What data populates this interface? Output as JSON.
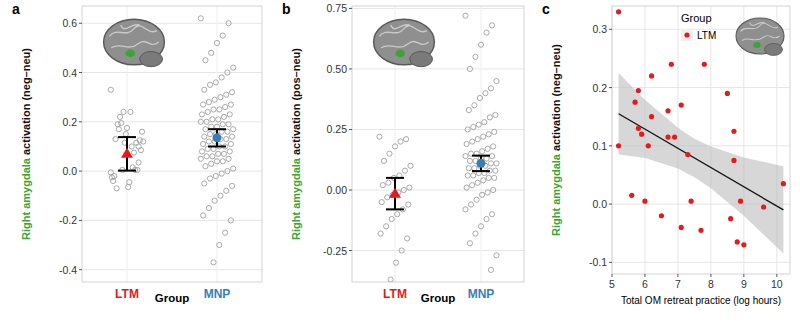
{
  "chart_data": [
    {
      "type": "strip",
      "title": "a",
      "xlabel": "Group",
      "ylabel": "Right amygdala activation (neg–neu)",
      "categories": [
        "LTM",
        "MNP"
      ],
      "colors": [
        "#e41a1c",
        "#377eb8"
      ],
      "values": [
        [
          0.33,
          0.1,
          0.015,
          0.175,
          0.195,
          0.13,
          0.12,
          0.005,
          0.1,
          0.15,
          0.22,
          -0.02,
          0.16,
          0.115,
          0.24,
          0.115,
          0.17,
          -0.04,
          0.085,
          0.005,
          -0.045,
          0.24,
          0.19,
          -0.025,
          0.125,
          0.075,
          -0.065,
          0.005,
          -0.07,
          -0.005,
          0.035
        ],
        [
          0.62,
          0.6,
          0.55,
          0.52,
          0.48,
          0.45,
          0.42,
          0.4,
          0.38,
          0.36,
          0.35,
          0.33,
          0.32,
          0.31,
          0.3,
          0.29,
          0.28,
          0.27,
          0.27,
          0.26,
          0.25,
          0.25,
          0.24,
          0.23,
          0.23,
          0.22,
          0.21,
          0.21,
          0.2,
          0.2,
          0.19,
          0.19,
          0.18,
          0.18,
          0.17,
          0.17,
          0.16,
          0.16,
          0.15,
          0.15,
          0.14,
          0.14,
          0.13,
          0.13,
          0.12,
          0.12,
          0.11,
          0.11,
          0.1,
          0.1,
          0.09,
          0.09,
          0.08,
          0.08,
          0.07,
          0.07,
          0.06,
          0.06,
          0.05,
          0.05,
          0.04,
          0.04,
          0.03,
          0.02,
          0.01,
          0.0,
          -0.01,
          -0.02,
          -0.03,
          -0.05,
          -0.06,
          -0.08,
          -0.1,
          -0.12,
          -0.15,
          -0.18,
          -0.2,
          -0.25,
          -0.3,
          -0.37
        ]
      ],
      "mean": [
        0.07,
        0.135
      ],
      "error": [
        0.068,
        0.035
      ],
      "ylim": [
        -0.45,
        0.67
      ],
      "yticks": [
        -0.4,
        -0.2,
        {
          "value": 0,
          "label": "0.0"
        },
        0.2,
        0.4,
        0.6
      ],
      "grid": true
    },
    {
      "type": "strip",
      "title": "b",
      "xlabel": "Group",
      "ylabel": "Right amygdala activation (pos–neu)",
      "categories": [
        "LTM",
        "MNP"
      ],
      "colors": [
        "#e41a1c",
        "#377eb8"
      ],
      "values": [
        [
          0.22,
          0.21,
          0.2,
          0.18,
          0.15,
          0.12,
          0.1,
          0.08,
          0.06,
          0.05,
          0.03,
          0.02,
          0.01,
          0.0,
          -0.01,
          -0.02,
          -0.03,
          -0.05,
          -0.06,
          -0.08,
          -0.1,
          -0.12,
          -0.15,
          -0.18,
          -0.2,
          -0.25,
          -0.3,
          -0.37
        ],
        [
          0.72,
          0.68,
          0.65,
          0.6,
          0.55,
          0.5,
          0.45,
          0.42,
          0.4,
          0.38,
          0.35,
          0.33,
          0.31,
          0.3,
          0.28,
          0.27,
          0.26,
          0.25,
          0.24,
          0.23,
          0.22,
          0.21,
          0.2,
          0.19,
          0.18,
          0.17,
          0.16,
          0.15,
          0.15,
          0.14,
          0.14,
          0.13,
          0.13,
          0.12,
          0.12,
          0.11,
          0.11,
          0.1,
          0.1,
          0.09,
          0.09,
          0.08,
          0.08,
          0.07,
          0.07,
          0.06,
          0.06,
          0.05,
          0.05,
          0.04,
          0.03,
          0.02,
          0.01,
          0.0,
          -0.01,
          -0.02,
          -0.04,
          -0.06,
          -0.08,
          -0.1,
          -0.12,
          -0.15,
          -0.18,
          -0.22,
          -0.27,
          -0.33
        ]
      ],
      "mean": [
        -0.015,
        0.11
      ],
      "error": [
        0.065,
        0.032
      ],
      "ylim": [
        -0.38,
        0.76
      ],
      "yticks": [
        -0.25,
        {
          "value": 0,
          "label": "0.00"
        },
        0.25,
        {
          "value": 0.5,
          "label": "0.50"
        },
        0.75
      ],
      "grid": true
    },
    {
      "type": "scatter",
      "title": "c",
      "xlabel": "Total OM retreat practice (log hours)",
      "ylabel": "Right amygdala activation (neg–neu)",
      "legend_title": "Group",
      "legend": "top",
      "x": [
        5.2,
        5.2,
        5.6,
        5.7,
        5.8,
        5.8,
        5.9,
        6.0,
        6.1,
        6.2,
        6.2,
        6.5,
        6.7,
        6.7,
        6.8,
        6.9,
        7.1,
        7.1,
        7.3,
        7.4,
        7.7,
        7.8,
        8.5,
        8.6,
        8.7,
        8.7,
        8.8,
        8.9,
        9.0,
        9.6,
        10.2
      ],
      "series": [
        {
          "name": "LTM",
          "color": "#e41a1c",
          "values": [
            0.33,
            0.1,
            0.015,
            0.175,
            0.195,
            0.13,
            0.12,
            0.005,
            0.1,
            0.15,
            0.22,
            -0.02,
            0.16,
            0.115,
            0.24,
            0.115,
            0.17,
            -0.04,
            0.085,
            0.005,
            -0.045,
            0.24,
            0.19,
            -0.025,
            0.125,
            0.075,
            -0.065,
            0.005,
            -0.07,
            -0.005,
            0.035
          ]
        }
      ],
      "fit": {
        "x": [
          5.2,
          10.2
        ],
        "values": [
          0.155,
          -0.01
        ]
      },
      "band": {
        "x": [
          5.2,
          6,
          7,
          7.5,
          8,
          9,
          10.2
        ],
        "low": [
          0.085,
          0.079,
          0.061,
          0.046,
          0.027,
          -0.02,
          -0.085
        ],
        "high": [
          0.225,
          0.179,
          0.131,
          0.112,
          0.099,
          0.08,
          0.065
        ]
      },
      "xlim": [
        5,
        10.4
      ],
      "xticks": [
        5,
        6,
        7,
        8,
        9,
        10
      ],
      "ylim": [
        -0.12,
        0.34
      ],
      "yticks": [
        -0.1,
        {
          "value": 0,
          "label": "0.0"
        },
        0.1,
        0.2,
        0.3
      ],
      "grid": true
    }
  ]
}
